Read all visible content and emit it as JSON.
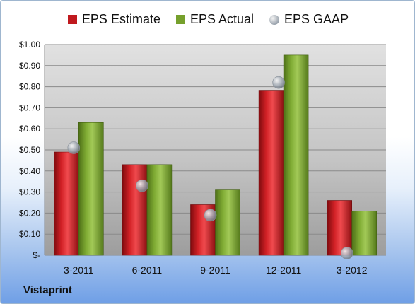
{
  "legend": {
    "estimate": "EPS Estimate",
    "actual": "EPS Actual",
    "gaap": "EPS GAAP"
  },
  "company": "Vistaprint",
  "colors": {
    "estimate": "#c0191e",
    "actual": "#76a02c",
    "gaap": "#9aa3ad"
  },
  "chart_data": {
    "type": "bar",
    "categories": [
      "3-2011",
      "6-2011",
      "9-2011",
      "12-2011",
      "3-2012"
    ],
    "series": [
      {
        "name": "EPS Estimate",
        "values": [
          0.49,
          0.43,
          0.24,
          0.78,
          0.26
        ]
      },
      {
        "name": "EPS Actual",
        "values": [
          0.63,
          0.43,
          0.31,
          0.95,
          0.21
        ]
      },
      {
        "name": "EPS GAAP",
        "values": [
          0.51,
          0.33,
          0.19,
          0.82,
          0.01
        ]
      }
    ],
    "ylim": [
      0,
      1.0
    ],
    "yticks": [
      {
        "value": 1.0,
        "label": "$1.00"
      },
      {
        "value": 0.9,
        "label": "$0.90"
      },
      {
        "value": 0.8,
        "label": "$0.80"
      },
      {
        "value": 0.7,
        "label": "$0.70"
      },
      {
        "value": 0.6,
        "label": "$0.60"
      },
      {
        "value": 0.5,
        "label": "$0.50"
      },
      {
        "value": 0.4,
        "label": "$0.40"
      },
      {
        "value": 0.3,
        "label": "$0.30"
      },
      {
        "value": 0.2,
        "label": "$0.20"
      },
      {
        "value": 0.1,
        "label": "$0.10"
      },
      {
        "value": 0.0,
        "label": "$-"
      }
    ],
    "grid": true,
    "legend_position": "top"
  }
}
